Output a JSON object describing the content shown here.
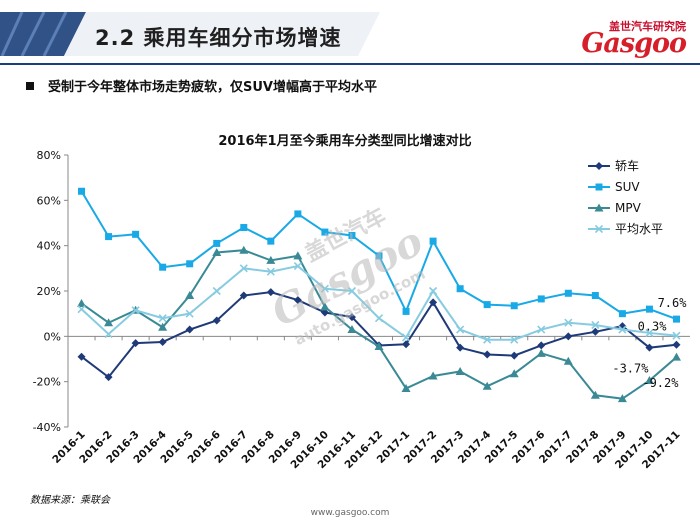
{
  "header": {
    "title": "2.2 乘用车细分市场增速"
  },
  "logo": {
    "cn": "盖世汽车研究院",
    "en": "Gasgoo"
  },
  "bullet": {
    "text": "受制于今年整体市场走势疲软，仅SUV增幅高于平均水平"
  },
  "watermark": {
    "cn": "盖世汽车",
    "en": "Gasgoo",
    "url": "auto.gasgoo.com"
  },
  "footer": {
    "source": "数据来源：乘联会",
    "url": "www.gasgoo.com"
  },
  "colors": {
    "header_band": "#1a3f7a",
    "sedan": "#1f3a78",
    "suv": "#18a9e6",
    "mpv": "#3a8a96",
    "avg": "#86cbe0"
  },
  "chart_data": {
    "type": "line",
    "title": "2016年1月至今乘用车分类型同比增速对比",
    "categories": [
      "2016-1",
      "2016-2",
      "2016-3",
      "2016-4",
      "2016-5",
      "2016-6",
      "2016-7",
      "2016-8",
      "2016-9",
      "2016-10",
      "2016-11",
      "2016-12",
      "2017-1",
      "2017-2",
      "2017-3",
      "2017-4",
      "2017-5",
      "2017-6",
      "2017-7",
      "2017-8",
      "2017-9",
      "2017-10",
      "2017-11"
    ],
    "y_ticks": [
      "80%",
      "60%",
      "40%",
      "20%",
      "0%",
      "-20%",
      "-40%"
    ],
    "ylim": [
      -40,
      80
    ],
    "legend_position": "right",
    "series": [
      {
        "name": "轿车",
        "marker": "diamond",
        "values": [
          -9,
          -18,
          -3,
          -2.5,
          3,
          7,
          18,
          19.5,
          16,
          10.5,
          8.5,
          -4,
          -3.5,
          15,
          -5,
          -8,
          -8.5,
          -4,
          0,
          2,
          4.5,
          -5,
          -3.7
        ]
      },
      {
        "name": "SUV",
        "marker": "square",
        "values": [
          64,
          44,
          45,
          30.5,
          32,
          41,
          48,
          42,
          54,
          46,
          44.5,
          35.5,
          11,
          42,
          21,
          14,
          13.5,
          16.5,
          19,
          18,
          10,
          12,
          7.6
        ]
      },
      {
        "name": "MPV",
        "marker": "triangle",
        "values": [
          14.5,
          6,
          11.5,
          4,
          18,
          37,
          38,
          33.5,
          35.5,
          13,
          3,
          -4.5,
          -23,
          -17.5,
          -15.5,
          -22,
          -16.5,
          -7.5,
          -11,
          -26,
          -27.5,
          -19.5,
          -9.2
        ]
      },
      {
        "name": "平均水平",
        "marker": "x",
        "values": [
          12,
          1,
          11.5,
          8,
          10,
          20,
          30,
          28.5,
          31,
          21,
          20,
          8,
          -0.5,
          20,
          3,
          -1.5,
          -1.5,
          3,
          6,
          5,
          3,
          1.5,
          0.3
        ]
      }
    ],
    "end_labels": [
      "-3.7%",
      "7.6%",
      "-9.2%",
      "0.3%"
    ]
  }
}
